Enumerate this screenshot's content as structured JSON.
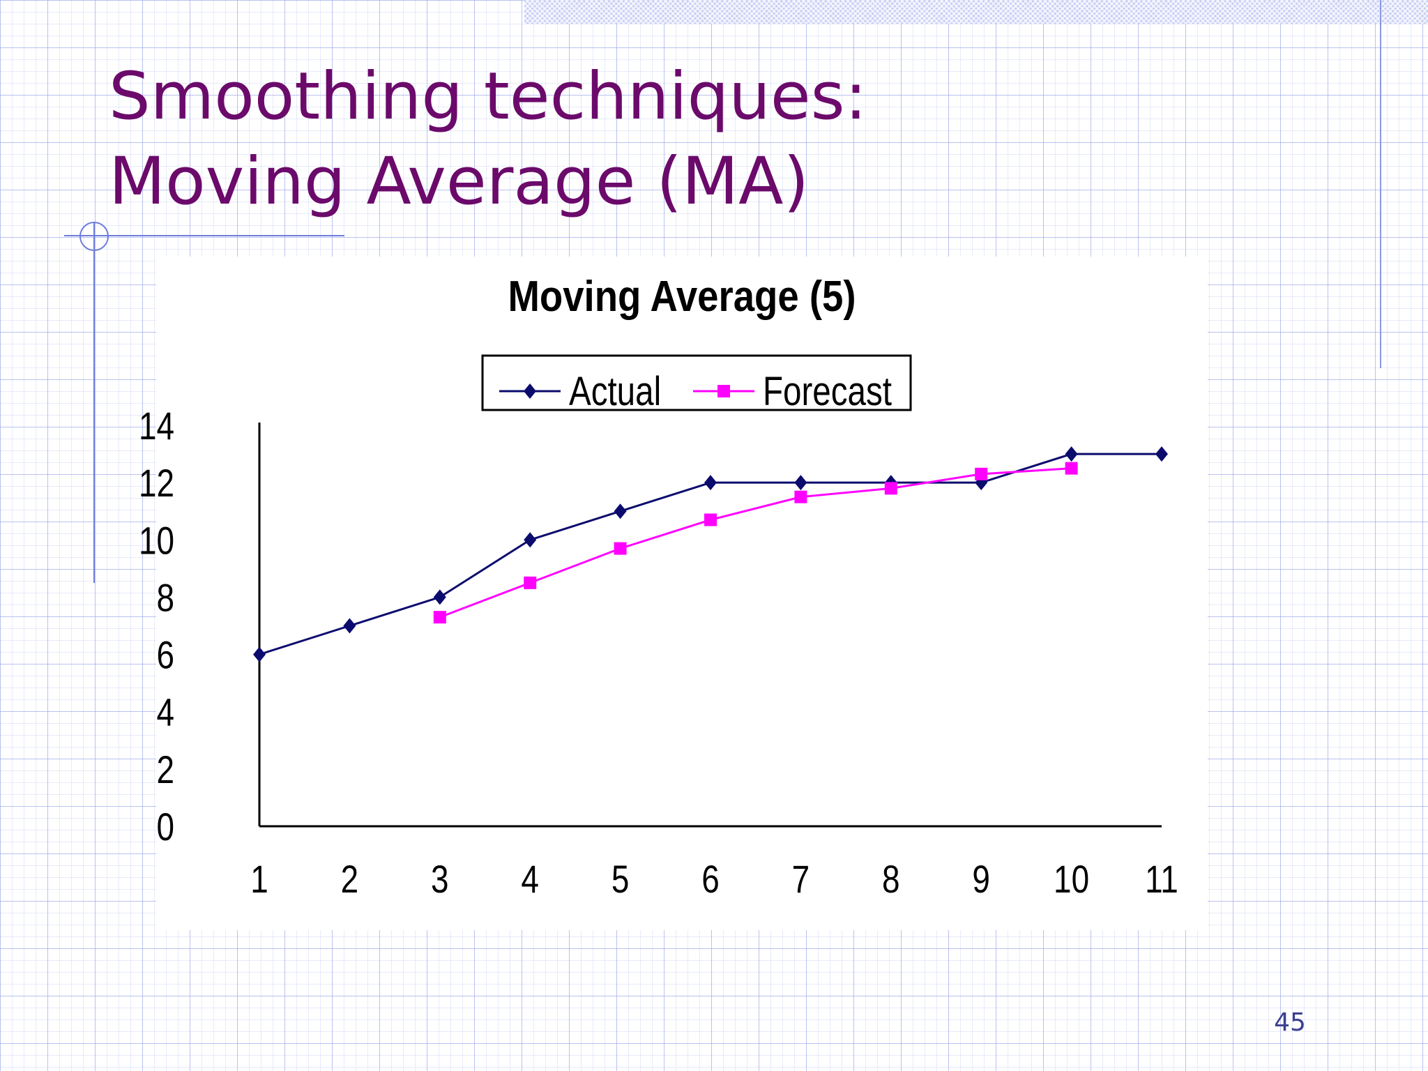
{
  "slide": {
    "title_line1": "Smoothing techniques:",
    "title_line2": "Moving Average (MA)",
    "page_number": "45"
  },
  "colors": {
    "title": "#6b0a6b",
    "actual": "#0b0b6e",
    "forecast": "#ff00ff",
    "grid": "#aab3ec"
  },
  "chart_data": {
    "type": "line",
    "title": "Moving Average (5)",
    "xlabel": "",
    "ylabel": "",
    "categories": [
      "1",
      "2",
      "3",
      "4",
      "5",
      "6",
      "7",
      "8",
      "9",
      "10",
      "11"
    ],
    "ylim": [
      0,
      14
    ],
    "yticks": [
      0,
      2,
      4,
      6,
      8,
      10,
      12,
      14
    ],
    "grid": false,
    "legend_position": "top",
    "series": [
      {
        "name": "Actual",
        "marker": "diamond",
        "color": "#0b0b6e",
        "values": [
          6,
          7,
          8,
          10,
          11,
          12,
          12,
          12,
          12,
          13,
          13
        ]
      },
      {
        "name": "Forecast",
        "marker": "square",
        "color": "#ff00ff",
        "values": [
          null,
          null,
          7.3,
          8.5,
          9.7,
          10.7,
          11.5,
          11.8,
          12.3,
          12.5,
          null
        ]
      }
    ]
  }
}
